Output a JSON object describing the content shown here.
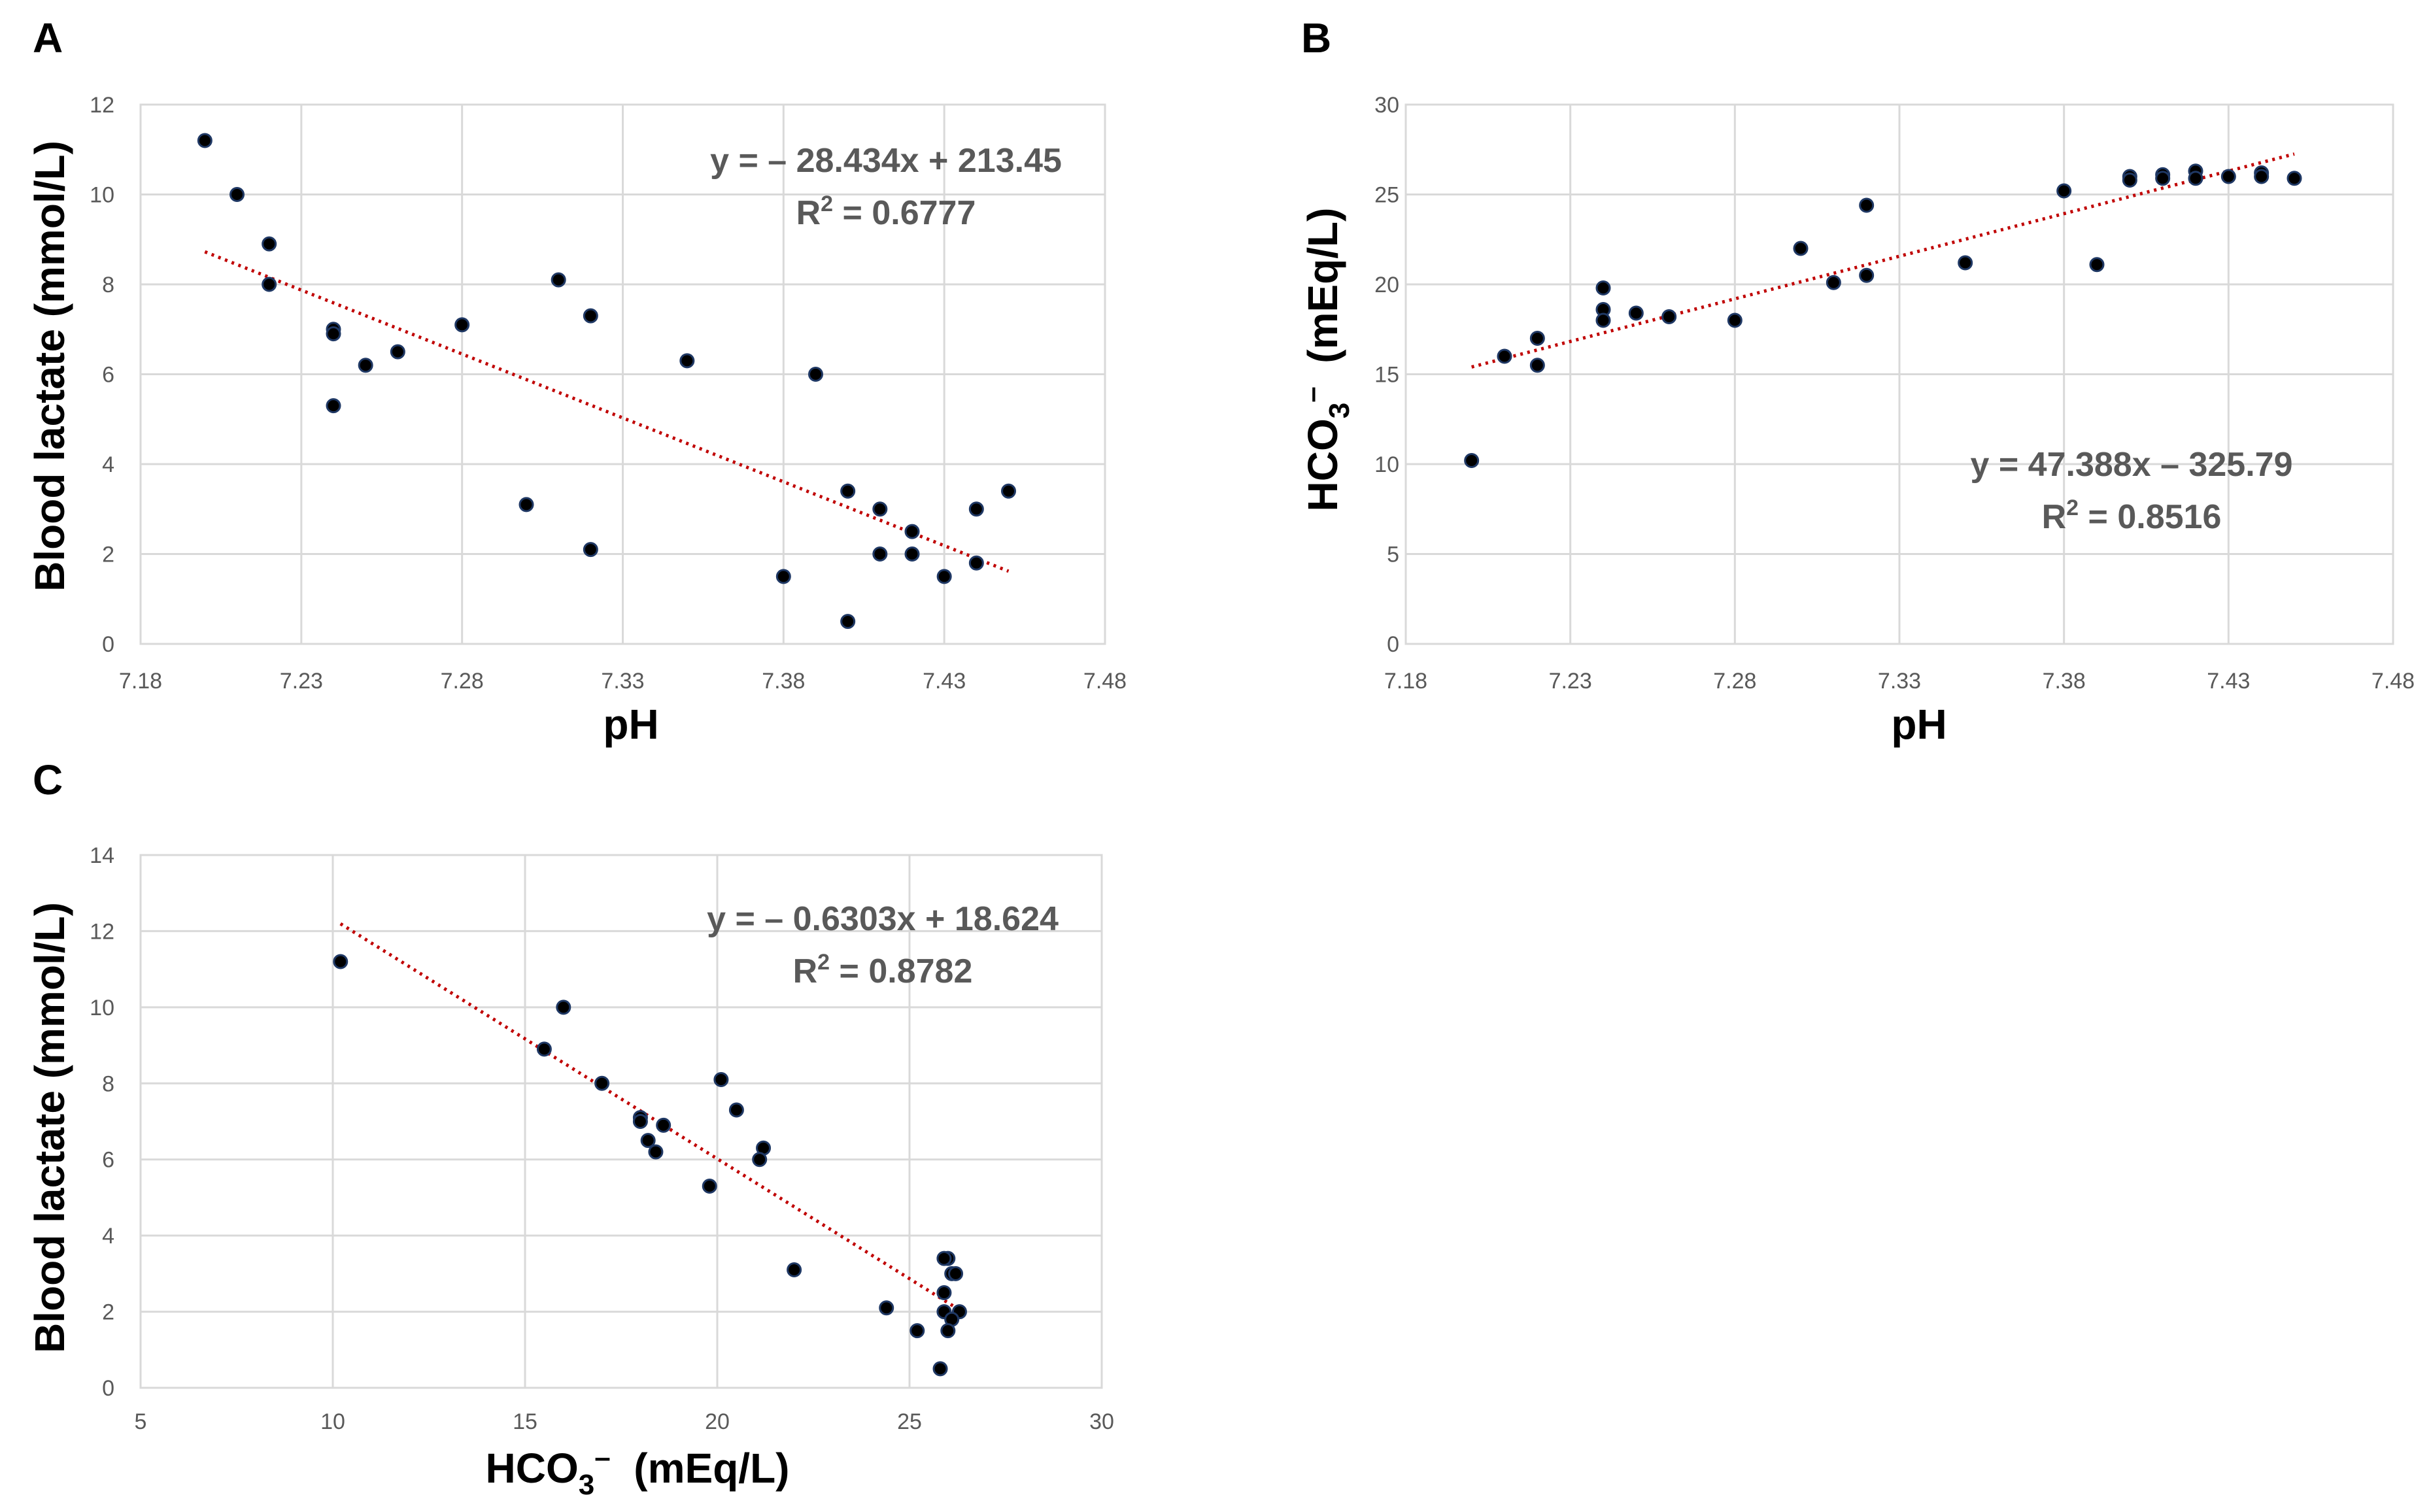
{
  "chart_data": [
    {
      "panel": "A",
      "type": "scatter",
      "xlabel": "pH",
      "ylabel": "Blood lactate (mmol/L)",
      "xlim": [
        7.18,
        7.48
      ],
      "ylim": [
        0,
        12
      ],
      "xticks": [
        "7.18",
        "7.23",
        "7.28",
        "7.33",
        "7.38",
        "7.43",
        "7.48"
      ],
      "yticks": [
        "0",
        "2",
        "4",
        "6",
        "8",
        "10",
        "12"
      ],
      "equation": "y = – 28.434x + 213.45",
      "r2_prefix": "R",
      "r2_sup": "2",
      "r2_value": " = 0.6777",
      "trend": {
        "slope": -28.434,
        "intercept": 213.45,
        "x_range": [
          7.2,
          7.45
        ]
      },
      "points": [
        [
          7.2,
          11.2
        ],
        [
          7.21,
          10.0
        ],
        [
          7.22,
          8.9
        ],
        [
          7.22,
          8.0
        ],
        [
          7.24,
          7.0
        ],
        [
          7.24,
          6.9
        ],
        [
          7.24,
          5.3
        ],
        [
          7.25,
          6.2
        ],
        [
          7.26,
          6.5
        ],
        [
          7.28,
          7.1
        ],
        [
          7.3,
          3.1
        ],
        [
          7.31,
          8.1
        ],
        [
          7.32,
          7.3
        ],
        [
          7.32,
          2.1
        ],
        [
          7.35,
          6.3
        ],
        [
          7.38,
          1.5
        ],
        [
          7.39,
          6.0
        ],
        [
          7.4,
          3.4
        ],
        [
          7.4,
          0.5
        ],
        [
          7.41,
          3.0
        ],
        [
          7.41,
          2.0
        ],
        [
          7.42,
          2.5
        ],
        [
          7.42,
          2.0
        ],
        [
          7.43,
          1.5
        ],
        [
          7.44,
          3.0
        ],
        [
          7.44,
          1.8
        ],
        [
          7.45,
          3.4
        ]
      ]
    },
    {
      "panel": "B",
      "type": "scatter",
      "xlabel": "pH",
      "ylabel_main": "HCO",
      "ylabel_sub": "3",
      "ylabel_sup": "–",
      "ylabel_unit": "  (mEq/L)",
      "xlim": [
        7.18,
        7.48
      ],
      "ylim": [
        0,
        30
      ],
      "xticks": [
        "7.18",
        "7.23",
        "7.28",
        "7.33",
        "7.38",
        "7.43",
        "7.48"
      ],
      "yticks": [
        "0",
        "5",
        "10",
        "15",
        "20",
        "25",
        "30"
      ],
      "equation": "y = 47.388x – 325.79",
      "r2_prefix": "R",
      "r2_sup": "2",
      "r2_value": " = 0.8516",
      "trend": {
        "slope": 47.388,
        "intercept": -325.79,
        "x_range": [
          7.2,
          7.45
        ]
      },
      "points": [
        [
          7.2,
          10.2
        ],
        [
          7.21,
          16.0
        ],
        [
          7.22,
          17.0
        ],
        [
          7.22,
          15.5
        ],
        [
          7.24,
          19.8
        ],
        [
          7.24,
          18.6
        ],
        [
          7.24,
          18.0
        ],
        [
          7.25,
          18.4
        ],
        [
          7.26,
          18.2
        ],
        [
          7.28,
          18.0
        ],
        [
          7.3,
          22.0
        ],
        [
          7.31,
          20.1
        ],
        [
          7.32,
          24.4
        ],
        [
          7.32,
          20.5
        ],
        [
          7.35,
          21.2
        ],
        [
          7.38,
          25.2
        ],
        [
          7.39,
          21.1
        ],
        [
          7.4,
          26.0
        ],
        [
          7.4,
          25.8
        ],
        [
          7.41,
          26.1
        ],
        [
          7.41,
          25.9
        ],
        [
          7.42,
          26.3
        ],
        [
          7.42,
          25.9
        ],
        [
          7.43,
          26.0
        ],
        [
          7.44,
          26.2
        ],
        [
          7.44,
          26.0
        ],
        [
          7.45,
          25.9
        ]
      ]
    },
    {
      "panel": "C",
      "type": "scatter",
      "xlabel_main": "HCO",
      "xlabel_sub": "3",
      "xlabel_sup": "–",
      "xlabel_unit": "  (mEq/L)",
      "ylabel": "Blood lactate (mmol/L)",
      "xlim": [
        5,
        30
      ],
      "ylim": [
        0,
        14
      ],
      "xticks": [
        "5",
        "10",
        "15",
        "20",
        "25",
        "30"
      ],
      "yticks": [
        "0",
        "2",
        "4",
        "6",
        "8",
        "10",
        "12",
        "14"
      ],
      "equation": "y = – 0.6303x + 18.624",
      "r2_prefix": "R",
      "r2_sup": "2",
      "r2_value": " = 0.8782",
      "trend": {
        "slope": -0.6303,
        "intercept": 18.624,
        "x_range": [
          10.2,
          26.3
        ]
      },
      "points": [
        [
          10.2,
          11.2
        ],
        [
          16.0,
          10.0
        ],
        [
          15.5,
          8.9
        ],
        [
          17.0,
          8.0
        ],
        [
          18.0,
          7.1
        ],
        [
          18.0,
          7.0
        ],
        [
          18.6,
          6.9
        ],
        [
          18.2,
          6.5
        ],
        [
          18.4,
          6.2
        ],
        [
          20.1,
          8.1
        ],
        [
          20.5,
          7.3
        ],
        [
          21.2,
          6.3
        ],
        [
          21.1,
          6.0
        ],
        [
          19.8,
          5.3
        ],
        [
          22.0,
          3.1
        ],
        [
          24.4,
          2.1
        ],
        [
          25.2,
          1.5
        ],
        [
          25.8,
          0.5
        ],
        [
          26.0,
          3.4
        ],
        [
          25.9,
          3.4
        ],
        [
          26.1,
          3.0
        ],
        [
          26.2,
          3.0
        ],
        [
          25.9,
          2.5
        ],
        [
          26.3,
          2.0
        ],
        [
          25.9,
          2.0
        ],
        [
          26.1,
          1.8
        ],
        [
          26.0,
          1.5
        ]
      ]
    }
  ]
}
